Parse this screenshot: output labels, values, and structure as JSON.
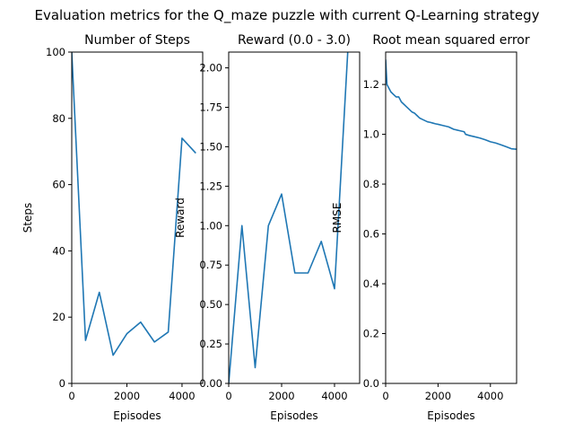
{
  "figure": {
    "suptitle": "Evaluation metrics for the Q_maze puzzle with current Q-Learning strategy"
  },
  "line_color": "#1f77b4",
  "chart_data": [
    {
      "type": "line",
      "title": "Number of Steps",
      "xlabel": "Episodes",
      "ylabel": "Steps",
      "xlim": [
        0,
        4750
      ],
      "ylim": [
        0,
        100
      ],
      "xticks": [
        0,
        2000,
        4000
      ],
      "yticks": [
        0,
        20,
        40,
        60,
        80,
        100
      ],
      "xtick_labels": [
        "0",
        "2000",
        "4000"
      ],
      "ytick_labels": [
        "0",
        "20",
        "40",
        "60",
        "80",
        "100"
      ],
      "grid": false,
      "series": [
        {
          "x": [
            0,
            500,
            1000,
            1500,
            2000,
            2500,
            3000,
            3500,
            4000,
            4500
          ],
          "y": [
            100,
            13,
            27.5,
            8.5,
            15,
            18.5,
            12.5,
            15.5,
            74,
            69.5
          ]
        }
      ]
    },
    {
      "type": "line",
      "title": "Reward (0.0 - 3.0)",
      "xlabel": "Episodes",
      "ylabel": "Reward",
      "xlim": [
        0,
        4950
      ],
      "ylim": [
        0,
        2.1
      ],
      "xticks": [
        0,
        2000,
        4000
      ],
      "yticks": [
        0,
        0.25,
        0.5,
        0.75,
        1.0,
        1.25,
        1.5,
        1.75,
        2.0
      ],
      "xtick_labels": [
        "0",
        "2000",
        "4000"
      ],
      "ytick_labels": [
        "0.00",
        "0.25",
        "0.50",
        "0.75",
        "1.00",
        "1.25",
        "1.50",
        "1.75",
        "2.00"
      ],
      "grid": false,
      "series": [
        {
          "x": [
            0,
            500,
            1000,
            1500,
            2000,
            2500,
            3000,
            3500,
            4000,
            4500
          ],
          "y": [
            0,
            1.0,
            0.1,
            1.0,
            1.2,
            0.7,
            0.7,
            0.9,
            0.6,
            2.1
          ]
        }
      ]
    },
    {
      "type": "line",
      "title": "Root mean squared error",
      "xlabel": "Episodes",
      "ylabel": "RMSE",
      "xlim": [
        0,
        5000
      ],
      "ylim": [
        0,
        1.33
      ],
      "xticks": [
        0,
        2000,
        4000
      ],
      "yticks": [
        0,
        0.2,
        0.4,
        0.6,
        0.8,
        1.0,
        1.2
      ],
      "xtick_labels": [
        "0",
        "2000",
        "4000"
      ],
      "ytick_labels": [
        "0.0",
        "0.2",
        "0.4",
        "0.6",
        "0.8",
        "1.0",
        "1.2"
      ],
      "grid": false,
      "series": [
        {
          "x": [
            0,
            50,
            150,
            200,
            300,
            400,
            500,
            600,
            700,
            800,
            900,
            1000,
            1100,
            1200,
            1300,
            1400,
            1500,
            1600,
            1700,
            1800,
            1900,
            2000,
            2200,
            2400,
            2600,
            2800,
            3000,
            3050,
            3200,
            3400,
            3600,
            3800,
            4000,
            4200,
            4400,
            4600,
            4800,
            5000
          ],
          "y": [
            1.3,
            1.2,
            1.18,
            1.17,
            1.16,
            1.15,
            1.15,
            1.13,
            1.12,
            1.11,
            1.1,
            1.09,
            1.085,
            1.075,
            1.065,
            1.06,
            1.055,
            1.05,
            1.048,
            1.045,
            1.042,
            1.04,
            1.035,
            1.03,
            1.02,
            1.015,
            1.01,
            1.0,
            0.995,
            0.99,
            0.985,
            0.978,
            0.97,
            0.965,
            0.958,
            0.95,
            0.942,
            0.94
          ]
        }
      ]
    }
  ]
}
